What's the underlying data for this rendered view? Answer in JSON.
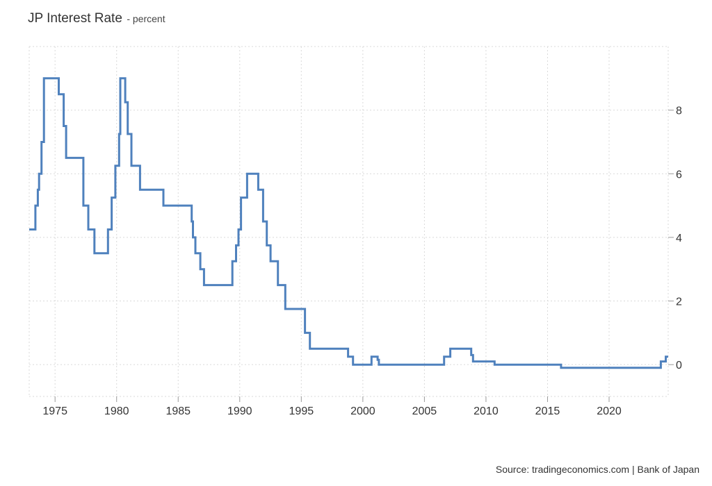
{
  "chart_data": {
    "type": "line",
    "title": "JP Interest Rate",
    "subtitle": "- percent",
    "source": "Source: tradingeconomics.com | Bank of Japan",
    "xlim": [
      1972.9,
      2024.8
    ],
    "ylim": [
      -1.0,
      10.0
    ],
    "x_ticks": [
      1975,
      1980,
      1985,
      1990,
      1995,
      2000,
      2005,
      2010,
      2015,
      2020
    ],
    "y_ticks": [
      0,
      2,
      4,
      6,
      8
    ],
    "grid": true,
    "line_color": "#4f81bd",
    "series": [
      {
        "step": true,
        "points": [
          [
            1972.9,
            4.25
          ],
          [
            1973.4,
            5.0
          ],
          [
            1973.6,
            5.5
          ],
          [
            1973.7,
            6.0
          ],
          [
            1973.9,
            7.0
          ],
          [
            1974.1,
            9.0
          ],
          [
            1975.3,
            8.5
          ],
          [
            1975.7,
            7.5
          ],
          [
            1975.9,
            6.5
          ],
          [
            1977.3,
            5.0
          ],
          [
            1977.7,
            4.25
          ],
          [
            1978.2,
            3.5
          ],
          [
            1979.3,
            4.25
          ],
          [
            1979.6,
            5.25
          ],
          [
            1979.9,
            6.25
          ],
          [
            1980.2,
            7.25
          ],
          [
            1980.3,
            9.0
          ],
          [
            1980.7,
            8.25
          ],
          [
            1980.9,
            7.25
          ],
          [
            1981.2,
            6.25
          ],
          [
            1981.9,
            5.5
          ],
          [
            1983.8,
            5.0
          ],
          [
            1986.1,
            4.5
          ],
          [
            1986.2,
            4.0
          ],
          [
            1986.4,
            3.5
          ],
          [
            1986.8,
            3.0
          ],
          [
            1987.1,
            2.5
          ],
          [
            1989.4,
            3.25
          ],
          [
            1989.7,
            3.75
          ],
          [
            1989.9,
            4.25
          ],
          [
            1990.1,
            5.25
          ],
          [
            1990.6,
            6.0
          ],
          [
            1991.5,
            5.5
          ],
          [
            1991.9,
            4.5
          ],
          [
            1992.2,
            3.75
          ],
          [
            1992.5,
            3.25
          ],
          [
            1993.1,
            2.5
          ],
          [
            1993.7,
            1.75
          ],
          [
            1995.3,
            1.0
          ],
          [
            1995.7,
            0.5
          ],
          [
            1998.8,
            0.25
          ],
          [
            1999.2,
            0.0
          ],
          [
            2000.7,
            0.25
          ],
          [
            2001.2,
            0.15
          ],
          [
            2001.3,
            0.0
          ],
          [
            2006.6,
            0.25
          ],
          [
            2007.1,
            0.5
          ],
          [
            2008.8,
            0.3
          ],
          [
            2008.95,
            0.1
          ],
          [
            2010.7,
            0.0
          ],
          [
            2016.1,
            -0.1
          ],
          [
            2024.2,
            0.1
          ],
          [
            2024.6,
            0.25
          ],
          [
            2024.8,
            0.25
          ]
        ]
      }
    ]
  }
}
